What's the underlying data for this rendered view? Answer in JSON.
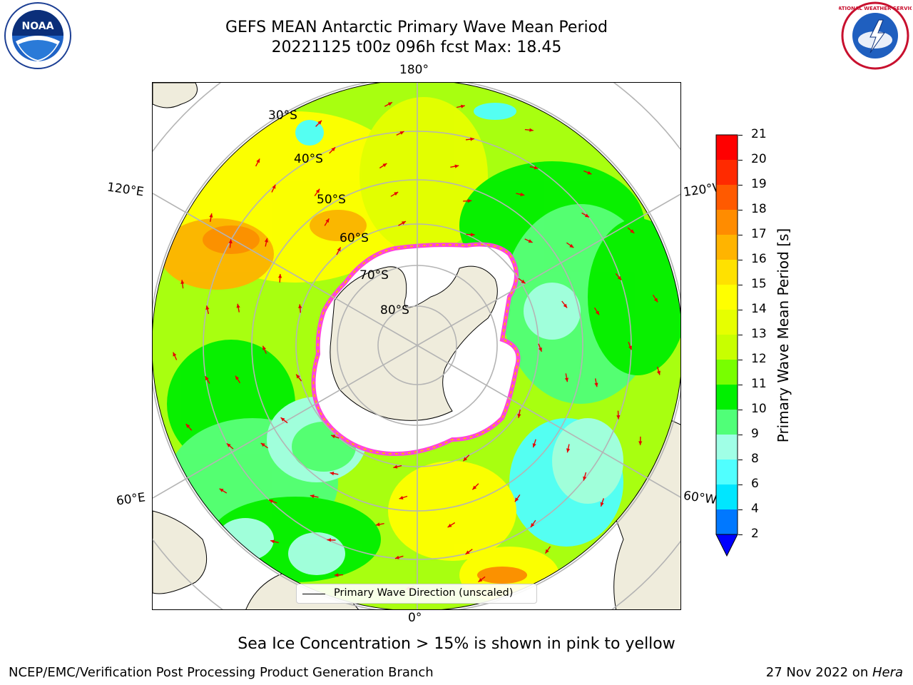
{
  "header": {
    "title_line1": "GEFS MEAN Antarctic Primary Wave Mean Period",
    "title_line2": "20221125 t00z 096h fcst   Max: 18.45"
  },
  "logos": {
    "left": "NOAA",
    "right": "NATIONAL WEATHER SERVICE"
  },
  "map": {
    "projection": "south-polar-stereographic",
    "longitude_labels": {
      "top": "180°",
      "bottom": "0°",
      "left_upper": "120°E",
      "left_lower": "60°E",
      "right_upper": "120°W",
      "right_lower": "60°W"
    },
    "latitude_labels": [
      "30°S",
      "40°S",
      "50°S",
      "60°S",
      "70°S",
      "80°S"
    ],
    "legend_text": "Primary Wave Direction (unscaled)",
    "colors": {
      "land": "#efecdc",
      "ice": "#ffffff",
      "ice_edge": "#ff44dd",
      "vector": "#e60000",
      "grid": "#b4b4b4"
    }
  },
  "colorbar": {
    "label": "Primary Wave Mean Period [s]",
    "ticks": [
      "21",
      "20",
      "19",
      "18",
      "17",
      "16",
      "15",
      "14",
      "13",
      "12",
      "11",
      "10",
      "9",
      "8",
      "6",
      "4",
      "2"
    ],
    "colors_top_to_bottom": [
      "#ff0000",
      "#ff2a00",
      "#ff5a00",
      "#ff8c00",
      "#ffb400",
      "#ffe100",
      "#ffff00",
      "#e6ff00",
      "#c8ff00",
      "#78ff00",
      "#00f000",
      "#50ff78",
      "#a0ffe6",
      "#50ffff",
      "#00e6ff",
      "#0078ff",
      "#0000ff"
    ],
    "extend": "min"
  },
  "subtitle": "Sea Ice Concentration > 15% is shown in pink to yellow",
  "footer": {
    "left": "NCEP/EMC/Verification Post Processing Product Generation Branch",
    "right_date": "27 Nov 2022 on ",
    "right_machine": "Hera"
  }
}
